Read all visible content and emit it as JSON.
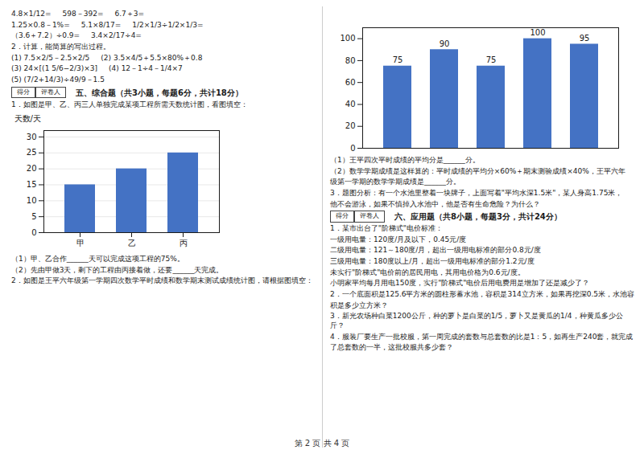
{
  "annotations": [
    "4.8×1/12=",
    "598－392=",
    "6.7＋3=",
    "1.25×0.8－1%=",
    "5.1×8/17=",
    "1/2×1/3÷1/2×1/3=",
    "（3.6＋7.2）÷0.9=",
    "3.4×2/17÷4=",
    "2．计算，能简算的写出过程。",
    "(1) 7.5×2/5－2.5×2/5",
    "(2) 3.5×4/5＋5.5×80%＋0.8",
    "(3) 24×[(1 5/6−2/3)×3]",
    "(4) 12－1÷4－1/4×7",
    "(5) (7/2+14/3)÷49/9－1.5",
    "得分",
    "评卷人",
    "五、综合题（共3小题，每题6分，共计18分）",
    "第 2 页 共 4 页"
  ],
  "chart_data": [
    {
      "type": "bar",
      "categories": [
        null,
        null,
        null,
        null,
        null
      ],
      "values": [
        75,
        90,
        75,
        100,
        95
      ],
      "color": "#4472C4",
      "ylim": [
        0,
        110
      ],
      "yticks": [
        0,
        20,
        40,
        60,
        80,
        100
      ],
      "data_labels": true,
      "tick_labels": "y",
      "annotations": [
        "（1）王平四次平时成绩的平均分是______分。",
        "（2）数学学期成绩是这样算的：平时成绩的平均分×60%＋期末测验成绩×40%，王平六年",
        "级第一学期的数学学期成绩是______分。",
        "3．题图分析：有一个水池里整着一块牌子，上面写着\"平均水深1.5米\"，某人身高1.75米，",
        "他不会游泳，如果不慎掉入水池中，他是否有生命危险？为什么？",
        "得分",
        "评卷人",
        "六、应用题（共8小题，每题3分，共计24分）",
        "1．某市出台了\"阶梯式\"电价标准：",
        "一级用电量：120度/月及以下，0.45元/度",
        "二级用电量：121～180度/月，超出一级用电标准的部分0.8元/度",
        "三级用电量：180度以上/月，超出一级用电标准的部分1.2元/度",
        "未实行\"阶梯式\"电价前的居民用电，其用电价格为0.6元/度。",
        "小明家平均每月用电150度，实行\"阶梯式\"电价后用电费用是增加了还是减少了？",
        "2．一个底面积是125.6平方米的圆柱形蓄水池，容积是314立方米，如果再挖深0.5米，水池容",
        "积是多少立方米？",
        "3．新光农场种白菜1200公斤，种的萝卜是白菜的1/5，萝卜又是黄瓜的1/4，种黄瓜多少公斤？",
        "4．服装厂要生产一批校服，第一周完成的套数与总套数的比是1：5，如再生产240套，就完成",
        "了总套数的一半，这批校服共多少套？"
      ]
    },
    {
      "type": "bar",
      "title": "1．如图是甲、乙、丙三人单独完成某项工程所需天数统计图，看图填空：",
      "categories": [
        "甲",
        "乙",
        "丙"
      ],
      "values": [
        15,
        20,
        25
      ],
      "color": "#4472C4",
      "ylabel": "天数/天",
      "ylim": [
        0,
        32
      ],
      "yticks": [
        0,
        5,
        10,
        15,
        20,
        25,
        30
      ],
      "grid": true,
      "annotations": [
        "（1）甲、乙合作______天可以完成这项工程的75%。",
        "（2）先由甲做3天，剩下的工程由丙接着做，还要______天完成。",
        "2．如图是王平六年级第一学期四次数学平时成绩和数学期末测试成绩统计图，请根据图填空："
      ]
    }
  ]
}
